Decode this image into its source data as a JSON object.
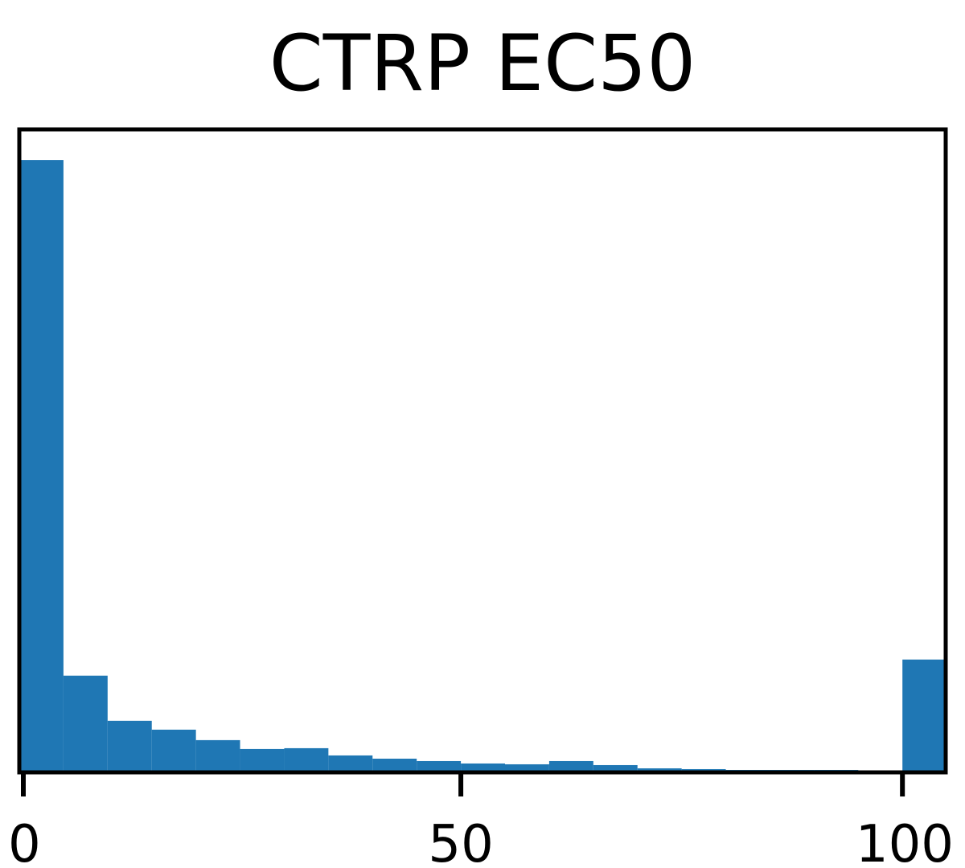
{
  "chart_data": {
    "type": "bar",
    "title": "CTRP EC50",
    "xlabel": "",
    "ylabel": "",
    "bin_width": 5,
    "bin_starts": [
      0,
      5,
      10,
      15,
      20,
      25,
      30,
      35,
      40,
      45,
      50,
      55,
      60,
      65,
      70,
      75,
      80,
      85,
      90,
      95,
      100
    ],
    "values": [
      760,
      120,
      64,
      53,
      40,
      29,
      30,
      21,
      17,
      14,
      11,
      10,
      14,
      9,
      5,
      4,
      3,
      3,
      3,
      2,
      140
    ],
    "xlim": [
      0,
      104.9
    ],
    "ylim": [
      0,
      798
    ],
    "xticks": [
      "0",
      "50",
      "100"
    ],
    "xtick_values": [
      0,
      50,
      100
    ],
    "bar_color": "#1f77b4",
    "grid": false
  }
}
